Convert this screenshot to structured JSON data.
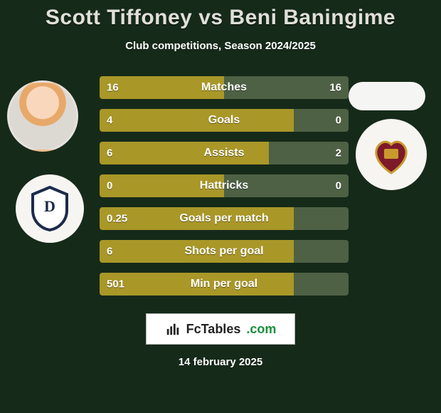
{
  "background_color": "#162a19",
  "title": {
    "player1": "Scott Tiffoney",
    "vs": "vs",
    "player2": "Beni Baningime",
    "color": "#e0dfd9",
    "fontsize": 30
  },
  "subtitle": "Club competitions, Season 2024/2025",
  "bars": {
    "track_height": 32,
    "gap": 14,
    "left_color": "#a99728",
    "right_color": "#4e6145",
    "text_color": "#ffffff",
    "fontsize": 15,
    "rows": [
      {
        "label": "Matches",
        "left": "16",
        "right": "16",
        "left_pct": 50
      },
      {
        "label": "Goals",
        "left": "4",
        "right": "0",
        "left_pct": 78
      },
      {
        "label": "Assists",
        "left": "6",
        "right": "2",
        "left_pct": 68
      },
      {
        "label": "Hattricks",
        "left": "0",
        "right": "0",
        "left_pct": 50
      },
      {
        "label": "Goals per match",
        "left": "0.25",
        "right": "",
        "left_pct": 78
      },
      {
        "label": "Shots per goal",
        "left": "6",
        "right": "",
        "left_pct": 78
      },
      {
        "label": "Min per goal",
        "left": "501",
        "right": "",
        "left_pct": 78
      }
    ]
  },
  "brand": {
    "name": "FcTables",
    "suffix": ".com"
  },
  "date": "14 february 2025"
}
